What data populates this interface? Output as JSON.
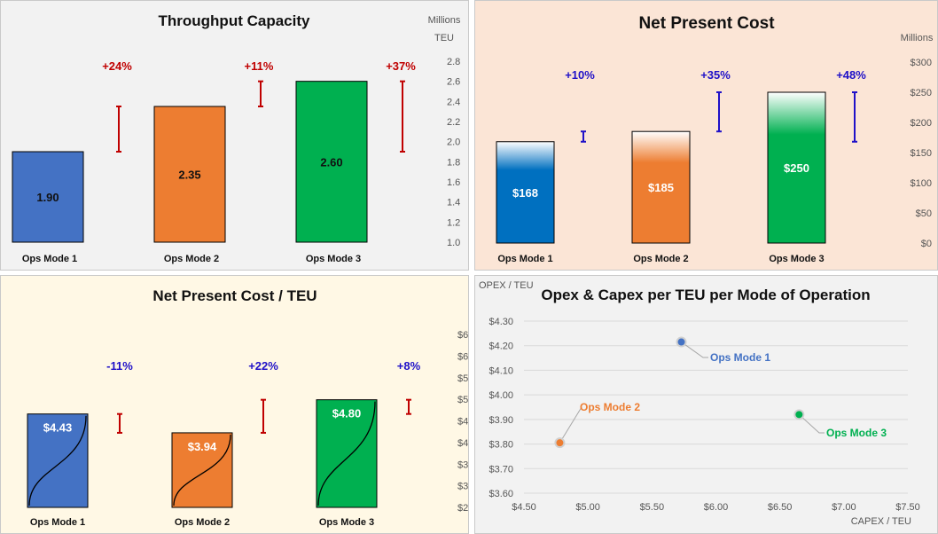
{
  "chart_data": [
    {
      "type": "bar",
      "title": "Throughput Capacity",
      "units": [
        "Millions",
        "TEU"
      ],
      "categories": [
        "Ops Mode 1",
        "Ops Mode 2",
        "Ops Mode 3"
      ],
      "values": [
        1.9,
        2.35,
        2.6
      ],
      "value_labels": [
        "1.90",
        "2.35",
        "2.60"
      ],
      "ylim": [
        1.0,
        2.8
      ],
      "yticks": [
        "1.0",
        "1.2",
        "1.4",
        "1.6",
        "1.8",
        "2.0",
        "2.2",
        "2.4",
        "2.6",
        "2.8"
      ],
      "range_bars": [
        {
          "label": "+24%",
          "low": 1.9,
          "high": 2.35
        },
        {
          "label": "+11%",
          "low": 2.35,
          "high": 2.6
        },
        {
          "label": "+37%",
          "low": 1.9,
          "high": 2.6
        }
      ],
      "colors": [
        "#4472c4",
        "#ed7d31",
        "#00b050"
      ],
      "range_color": "#c00000",
      "background": "#f2f2f2"
    },
    {
      "type": "bar",
      "title": "Net Present Cost",
      "units": [
        "Millions"
      ],
      "categories": [
        "Ops Mode 1",
        "Ops Mode 2",
        "Ops Mode 3"
      ],
      "values": [
        168,
        185,
        250
      ],
      "value_labels": [
        "$168",
        "$185",
        "$250"
      ],
      "ylim": [
        0,
        300
      ],
      "yticks": [
        "$0",
        "$50",
        "$100",
        "$150",
        "$200",
        "$250",
        "$300"
      ],
      "range_bars": [
        {
          "label": "+10%",
          "low": 168,
          "high": 185
        },
        {
          "label": "+35%",
          "low": 185,
          "high": 250
        },
        {
          "label": "+48%",
          "low": 168,
          "high": 250
        }
      ],
      "colors": [
        "#0070c0",
        "#ed7d31",
        "#00b050"
      ],
      "range_color": "#1f10c8",
      "background": "#fbe5d6"
    },
    {
      "type": "bar",
      "title": "Net Present Cost / TEU",
      "categories": [
        "Ops Mode 1",
        "Ops Mode 2",
        "Ops Mode 3"
      ],
      "values": [
        4.43,
        3.94,
        4.8
      ],
      "value_labels": [
        "$4.43",
        "$3.94",
        "$4.80"
      ],
      "ylim": [
        2,
        6.5
      ],
      "yticks": [
        "$2",
        "$3",
        "$3",
        "$4",
        "$4",
        "$5",
        "$5",
        "$6",
        "$6"
      ],
      "range_bars": [
        {
          "label": "-11%",
          "low": 3.94,
          "high": 4.43
        },
        {
          "label": "+22%",
          "low": 3.94,
          "high": 4.8
        },
        {
          "label": "+8%",
          "low": 4.43,
          "high": 4.8
        }
      ],
      "colors": [
        "#4472c4",
        "#ed7d31",
        "#00b050"
      ],
      "range_color": "#c00000",
      "label_color": "#1f10c8",
      "background": "#fff8e5"
    },
    {
      "type": "scatter",
      "title": "Opex & Capex per TEU per Mode of Operation",
      "xlabel": "CAPEX / TEU",
      "ylabel": "OPEX / TEU",
      "xlim": [
        4.5,
        7.5
      ],
      "ylim": [
        3.6,
        4.3
      ],
      "xticks": [
        "$4.50",
        "$5.00",
        "$5.50",
        "$6.00",
        "$6.50",
        "$7.00",
        "$7.50"
      ],
      "yticks": [
        "$3.60",
        "$3.70",
        "$3.80",
        "$3.90",
        "$4.00",
        "$4.10",
        "$4.20",
        "$4.30"
      ],
      "points": [
        {
          "name": "Ops Mode 1",
          "x": 5.73,
          "y": 4.215,
          "color": "#4472c4"
        },
        {
          "name": "Ops Mode 2",
          "x": 4.78,
          "y": 3.805,
          "color": "#ed7d31"
        },
        {
          "name": "Ops Mode 3",
          "x": 6.65,
          "y": 3.92,
          "color": "#00b050"
        }
      ],
      "grid": true,
      "background": "#f2f2f2"
    }
  ]
}
